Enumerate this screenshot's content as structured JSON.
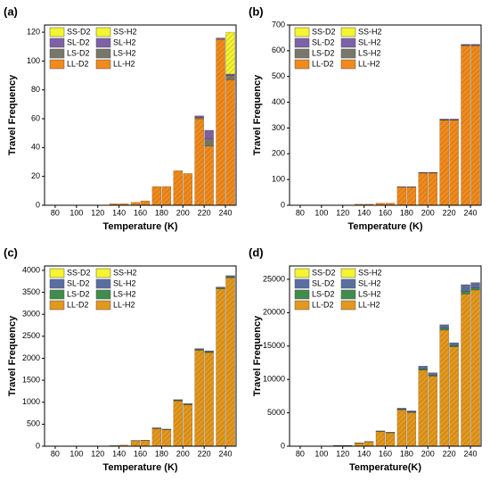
{
  "chart_data": [
    {
      "type": "bar",
      "label": "(a)",
      "xlabel": "Temperature (K)",
      "ylabel": "Travel Frequency",
      "categories": [
        "80",
        "100",
        "120",
        "140",
        "160",
        "180",
        "200",
        "220",
        "240"
      ],
      "ylim": [
        0,
        125
      ],
      "yticks": [
        0,
        20,
        40,
        60,
        80,
        100,
        120
      ],
      "series": [
        {
          "name": "SS-D2",
          "color": "#f4f430",
          "values": [
            0,
            0,
            0,
            0,
            0,
            0,
            0,
            0,
            0
          ]
        },
        {
          "name": "SS-H2",
          "color": "#f4f430",
          "values": [
            0,
            0,
            0,
            0,
            0,
            0,
            0,
            0,
            29
          ]
        },
        {
          "name": "SL-D2",
          "color": "#7d62a8",
          "values": [
            0,
            0,
            0,
            0,
            0,
            0,
            0,
            1,
            1
          ]
        },
        {
          "name": "SL-H2",
          "color": "#7d62a8",
          "values": [
            0,
            0,
            0,
            0,
            0,
            0,
            0,
            6,
            1
          ]
        },
        {
          "name": "LS-D2",
          "color": "#77776a",
          "values": [
            0,
            0,
            0,
            0,
            0,
            0,
            0,
            1,
            0
          ]
        },
        {
          "name": "LS-H2",
          "color": "#77776a",
          "values": [
            0,
            0,
            0,
            0,
            0,
            0,
            0,
            5,
            3
          ]
        },
        {
          "name": "LL-D2",
          "color": "#f08a1c",
          "values": [
            0,
            0,
            0,
            1,
            2,
            13,
            24,
            60,
            115
          ]
        },
        {
          "name": "LL-H2",
          "color": "#f08a1c",
          "values": [
            0,
            0,
            0,
            1,
            3,
            13,
            22,
            41,
            87
          ]
        }
      ]
    },
    {
      "type": "bar",
      "label": "(b)",
      "xlabel": "Temperature (K)",
      "ylabel": "Travel Frequency",
      "categories": [
        "80",
        "100",
        "120",
        "140",
        "160",
        "180",
        "200",
        "220",
        "240"
      ],
      "ylim": [
        0,
        700
      ],
      "yticks": [
        0,
        100,
        200,
        300,
        400,
        500,
        600,
        700
      ],
      "series": [
        {
          "name": "SS-D2",
          "color": "#f4f430",
          "values": [
            0,
            0,
            0,
            0,
            0,
            0,
            0,
            0,
            0
          ]
        },
        {
          "name": "SS-H2",
          "color": "#f4f430",
          "values": [
            0,
            0,
            0,
            0,
            0,
            0,
            0,
            0,
            0
          ]
        },
        {
          "name": "SL-D2",
          "color": "#7d62a8",
          "values": [
            0,
            0,
            0,
            0,
            0,
            1,
            2,
            3,
            3
          ]
        },
        {
          "name": "SL-H2",
          "color": "#7d62a8",
          "values": [
            0,
            0,
            0,
            0,
            0,
            1,
            2,
            3,
            3
          ]
        },
        {
          "name": "LS-D2",
          "color": "#77776a",
          "values": [
            0,
            0,
            0,
            0,
            0,
            1,
            1,
            2,
            2
          ]
        },
        {
          "name": "LS-H2",
          "color": "#77776a",
          "values": [
            0,
            0,
            0,
            0,
            0,
            1,
            1,
            2,
            2
          ]
        },
        {
          "name": "LL-D2",
          "color": "#f08a1c",
          "values": [
            0,
            0,
            0,
            4,
            8,
            70,
            125,
            330,
            620
          ]
        },
        {
          "name": "LL-H2",
          "color": "#f08a1c",
          "values": [
            0,
            0,
            0,
            4,
            8,
            70,
            125,
            330,
            620
          ]
        }
      ]
    },
    {
      "type": "bar",
      "label": "(c)",
      "xlabel": "Temperature (K)",
      "ylabel": "Travel Frequency",
      "categories": [
        "80",
        "100",
        "120",
        "140",
        "160",
        "180",
        "200",
        "220",
        "240"
      ],
      "ylim": [
        0,
        4100
      ],
      "yticks": [
        0,
        500,
        1000,
        1500,
        2000,
        2500,
        3000,
        3500,
        4000
      ],
      "series": [
        {
          "name": "SS-D2",
          "color": "#f4f430",
          "values": [
            0,
            0,
            0,
            0,
            0,
            0,
            0,
            0,
            0
          ]
        },
        {
          "name": "SS-H2",
          "color": "#f4f430",
          "values": [
            0,
            0,
            0,
            0,
            0,
            0,
            0,
            0,
            0
          ]
        },
        {
          "name": "SL-D2",
          "color": "#5a6ea2",
          "values": [
            0,
            0,
            0,
            0,
            2,
            10,
            15,
            20,
            20
          ]
        },
        {
          "name": "SL-H2",
          "color": "#5a6ea2",
          "values": [
            0,
            0,
            0,
            0,
            2,
            8,
            15,
            20,
            25
          ]
        },
        {
          "name": "LS-D2",
          "color": "#3f8c4c",
          "values": [
            0,
            0,
            0,
            0,
            3,
            10,
            15,
            20,
            20
          ]
        },
        {
          "name": "LS-H2",
          "color": "#3f8c4c",
          "values": [
            0,
            0,
            0,
            0,
            3,
            7,
            10,
            20,
            25
          ]
        },
        {
          "name": "LL-D2",
          "color": "#e2981e",
          "values": [
            0,
            0,
            5,
            15,
            125,
            400,
            1030,
            2180,
            3580
          ]
        },
        {
          "name": "LL-H2",
          "color": "#e2981e",
          "values": [
            0,
            0,
            5,
            25,
            130,
            375,
            945,
            2130,
            3830
          ]
        }
      ]
    },
    {
      "type": "bar",
      "label": "(d)",
      "xlabel": "Temperature(K)",
      "ylabel": "Travel Frequency",
      "categories": [
        "80",
        "100",
        "120",
        "140",
        "160",
        "180",
        "200",
        "220",
        "240"
      ],
      "ylim": [
        0,
        27000
      ],
      "yticks": [
        0,
        5000,
        10000,
        15000,
        20000,
        25000
      ],
      "series": [
        {
          "name": "SS-D2",
          "color": "#f4f430",
          "values": [
            0,
            0,
            0,
            0,
            0,
            0,
            0,
            0,
            0
          ]
        },
        {
          "name": "SS-H2",
          "color": "#f4f430",
          "values": [
            0,
            0,
            0,
            0,
            0,
            0,
            0,
            0,
            0
          ]
        },
        {
          "name": "SL-D2",
          "color": "#5a6ea2",
          "values": [
            0,
            0,
            5,
            20,
            60,
            150,
            400,
            500,
            1000
          ]
        },
        {
          "name": "SL-H2",
          "color": "#5a6ea2",
          "values": [
            0,
            0,
            5,
            20,
            50,
            150,
            350,
            400,
            800
          ]
        },
        {
          "name": "LS-D2",
          "color": "#3f8c4c",
          "values": [
            0,
            0,
            5,
            10,
            40,
            100,
            200,
            300,
            400
          ]
        },
        {
          "name": "LS-H2",
          "color": "#3f8c4c",
          "values": [
            0,
            0,
            5,
            10,
            50,
            100,
            150,
            200,
            300
          ]
        },
        {
          "name": "LL-D2",
          "color": "#e2981e",
          "values": [
            0,
            0,
            90,
            470,
            2200,
            5450,
            11400,
            17400,
            22800
          ]
        },
        {
          "name": "LL-H2",
          "color": "#e2981e",
          "values": [
            0,
            0,
            90,
            670,
            2000,
            5050,
            10500,
            14900,
            23400
          ]
        }
      ]
    }
  ]
}
